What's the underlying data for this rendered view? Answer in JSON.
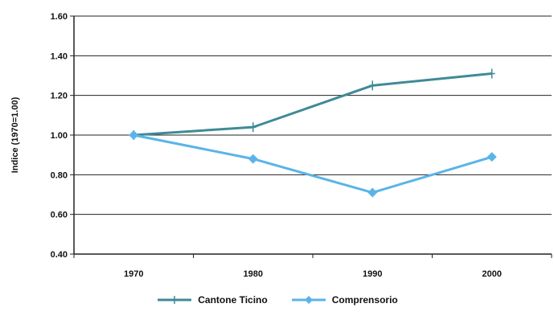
{
  "chart_data": {
    "type": "line",
    "title": "",
    "xlabel": "",
    "ylabel": "Indice (1970=1.00)",
    "categories": [
      "1970",
      "1980",
      "1990",
      "2000"
    ],
    "ylim": [
      0.4,
      1.6
    ],
    "yticks": [
      "0.40",
      "0.60",
      "0.80",
      "1.00",
      "1.20",
      "1.40",
      "1.60"
    ],
    "grid": "horizontal",
    "legend_position": "bottom",
    "series": [
      {
        "name": "Cantone Ticino",
        "values": [
          1.0,
          1.04,
          1.25,
          1.31
        ],
        "color": "#3f8a98",
        "marker": "plus"
      },
      {
        "name": "Comprensorio",
        "values": [
          1.0,
          0.88,
          0.71,
          0.89
        ],
        "color": "#5ab4e8",
        "marker": "diamond"
      }
    ]
  }
}
